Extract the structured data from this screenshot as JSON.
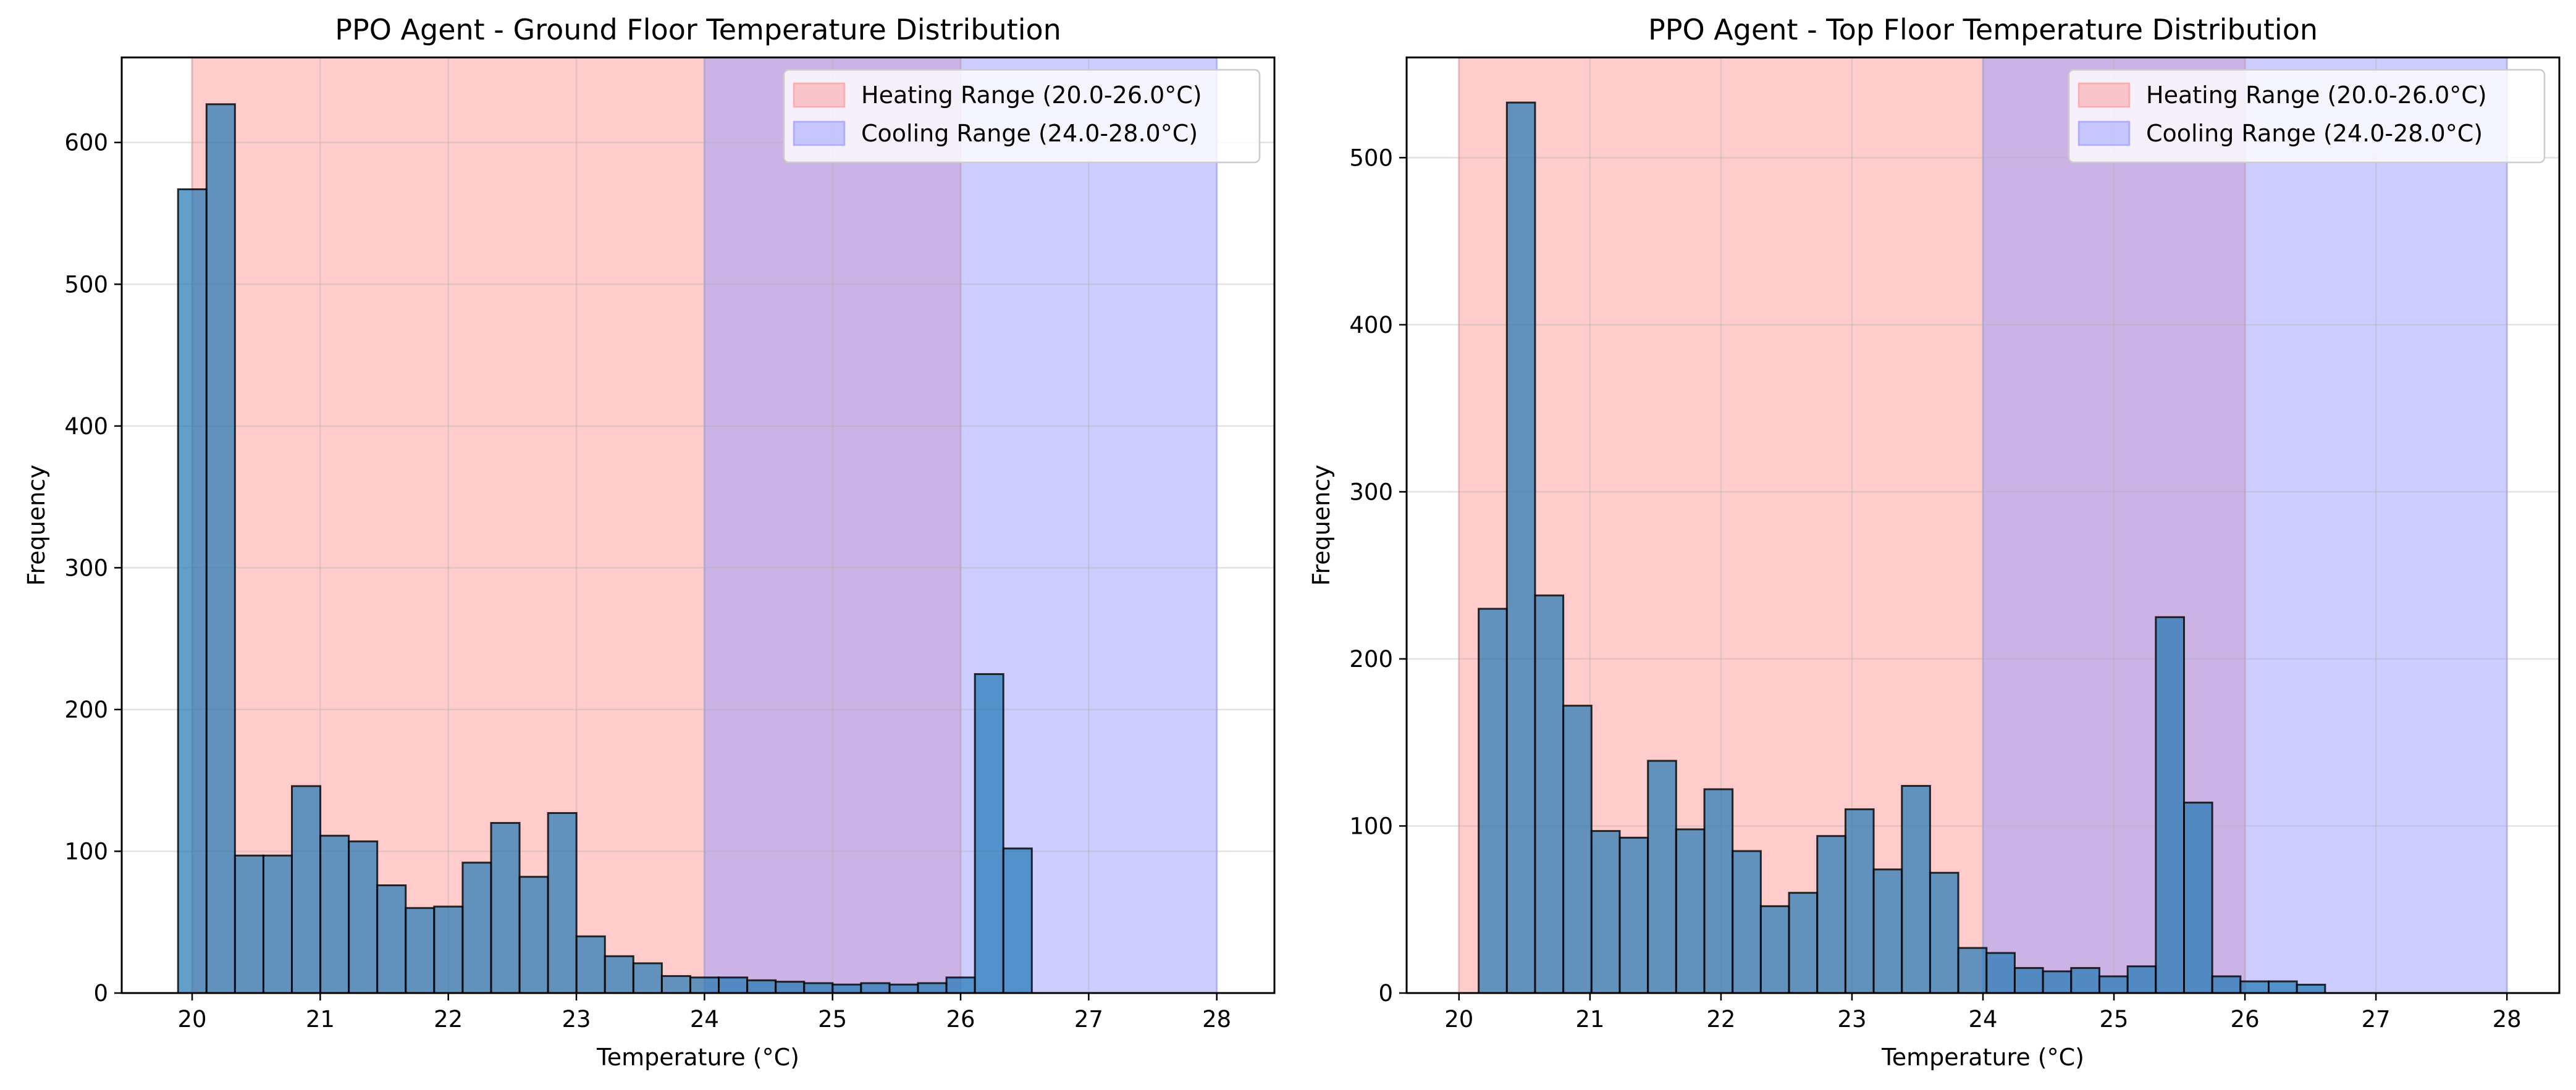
{
  "chart_data": [
    {
      "type": "bar",
      "title": "PPO Agent - Ground Floor Temperature Distribution",
      "xlabel": "Temperature (°C)",
      "ylabel": "Frequency",
      "xlim": [
        19.45,
        28.45
      ],
      "ylim": [
        0,
        660
      ],
      "xticks": [
        "20",
        "21",
        "22",
        "23",
        "24",
        "25",
        "26",
        "27",
        "28"
      ],
      "yticks": [
        "0",
        "100",
        "200",
        "300",
        "400",
        "500",
        "600"
      ],
      "grid": true,
      "legend_position": "top-right",
      "bin_width": 0.2222,
      "bins_start": 19.89,
      "values": [
        567,
        627,
        97,
        97,
        146,
        111,
        107,
        76,
        60,
        61,
        92,
        120,
        82,
        127,
        40,
        26,
        21,
        12,
        11,
        11,
        9,
        8,
        7,
        6,
        7,
        6,
        7,
        11,
        225,
        102
      ],
      "bar_color": "#1f77b4",
      "bands": [
        {
          "label": "Heating Range (20.0-26.0°C)",
          "range": [
            20.0,
            26.0
          ],
          "color": "#ff9999"
        },
        {
          "label": "Cooling Range (24.0-28.0°C)",
          "range": [
            24.0,
            28.0
          ],
          "color": "#9999ff"
        }
      ]
    },
    {
      "type": "bar",
      "title": "PPO Agent - Top Floor Temperature Distribution",
      "xlabel": "Temperature (°C)",
      "ylabel": "Frequency",
      "xlim": [
        19.6,
        28.4
      ],
      "ylim": [
        0,
        560
      ],
      "xticks": [
        "20",
        "21",
        "22",
        "23",
        "24",
        "25",
        "26",
        "27",
        "28"
      ],
      "yticks": [
        "0",
        "100",
        "200",
        "300",
        "400",
        "500"
      ],
      "grid": true,
      "legend_position": "top-right",
      "bin_width": 0.2154,
      "bins_start": 20.15,
      "values": [
        230,
        533,
        238,
        172,
        97,
        93,
        139,
        98,
        122,
        85,
        52,
        60,
        94,
        110,
        74,
        124,
        72,
        27,
        24,
        15,
        13,
        15,
        10,
        16,
        225,
        114,
        10,
        7,
        7,
        5
      ],
      "bar_color": "#1f77b4",
      "bands": [
        {
          "label": "Heating Range (20.0-26.0°C)",
          "range": [
            20.0,
            26.0
          ],
          "color": "#ff9999"
        },
        {
          "label": "Cooling Range (24.0-28.0°C)",
          "range": [
            24.0,
            28.0
          ],
          "color": "#9999ff"
        }
      ]
    }
  ]
}
